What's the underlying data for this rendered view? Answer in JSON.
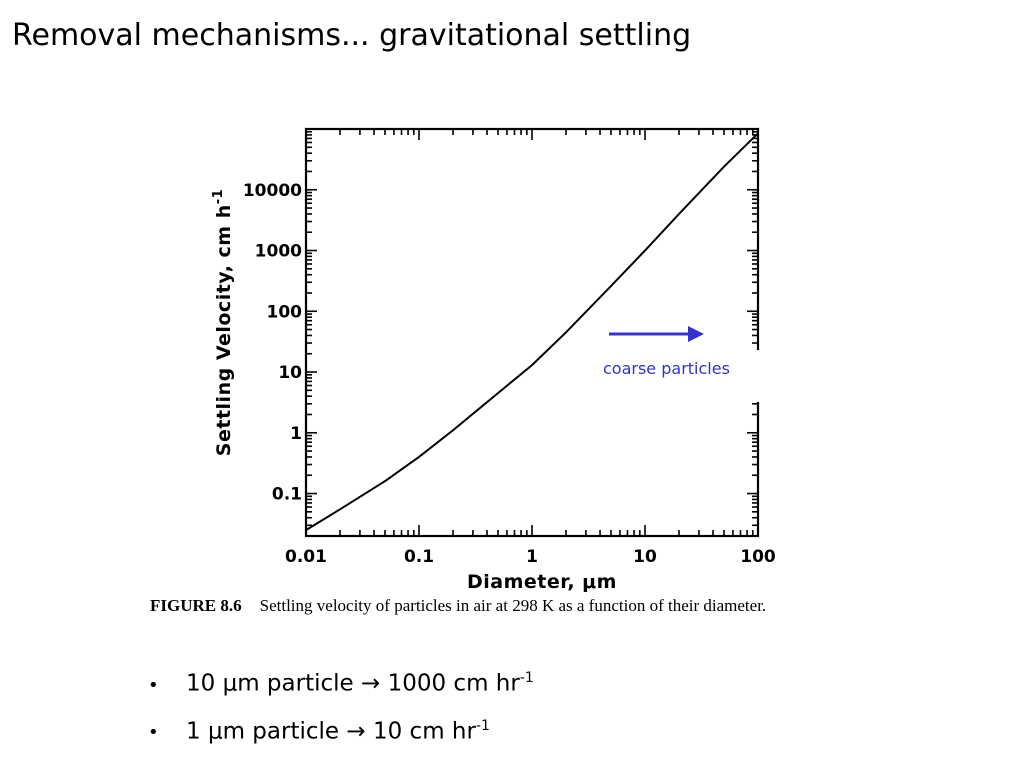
{
  "slide": {
    "title": "Removal mechanisms... gravitational settling"
  },
  "chart_data": {
    "type": "line",
    "x_scale": "log",
    "y_scale": "log",
    "xlabel": "Diameter, μm",
    "ylabel": "Settling Velocity, cm h",
    "ylabel_superscript": "-1",
    "xlim": [
      0.01,
      100
    ],
    "ylim": [
      0.02,
      100000
    ],
    "x_tick_labels": [
      {
        "value": 0.01,
        "label": "0.01"
      },
      {
        "value": 0.1,
        "label": "0.1"
      },
      {
        "value": 1,
        "label": "1"
      },
      {
        "value": 10,
        "label": "10"
      },
      {
        "value": 100,
        "label": "100"
      }
    ],
    "y_tick_labels": [
      {
        "value": 0.1,
        "label": "0.1"
      },
      {
        "value": 1,
        "label": "1"
      },
      {
        "value": 10,
        "label": "10"
      },
      {
        "value": 100,
        "label": "100"
      },
      {
        "value": 1000,
        "label": "1000"
      },
      {
        "value": 10000,
        "label": "10000"
      }
    ],
    "grid": false,
    "series": [
      {
        "points": [
          {
            "x": 0.01,
            "y": 0.025
          },
          {
            "x": 0.02,
            "y": 0.055
          },
          {
            "x": 0.05,
            "y": 0.16
          },
          {
            "x": 0.1,
            "y": 0.4
          },
          {
            "x": 0.2,
            "y": 1.1
          },
          {
            "x": 0.5,
            "y": 4.5
          },
          {
            "x": 1,
            "y": 13
          },
          {
            "x": 2,
            "y": 45
          },
          {
            "x": 5,
            "y": 260
          },
          {
            "x": 10,
            "y": 1000
          },
          {
            "x": 20,
            "y": 4000
          },
          {
            "x": 50,
            "y": 24000
          },
          {
            "x": 100,
            "y": 85000
          }
        ],
        "color": "#000000"
      }
    ],
    "annotation": {
      "label": "coarse particles",
      "color": "#3333cc"
    },
    "caption_number": "FIGURE 8.6",
    "caption_text": "Settling velocity of particles in air at 298 K as a function of their diameter."
  },
  "bullets": [
    {
      "prefix": "10 ",
      "unit": "μ",
      "middle": "m particle ",
      "arrow": "→",
      "value": " 1000 cm hr",
      "sup": "-1"
    },
    {
      "prefix": "1 ",
      "unit": "μ",
      "middle": "m particle ",
      "arrow": "→",
      "value": " 10 cm hr",
      "sup": "-1"
    }
  ]
}
